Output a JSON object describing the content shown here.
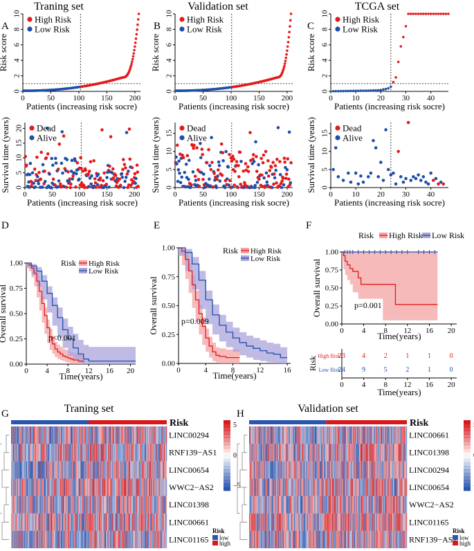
{
  "colors": {
    "high": "#e31a1c",
    "low": "#1f4fa8",
    "high_band": "#f4a3a3",
    "low_band": "#a9a4dc",
    "heat_high": "#d7191c",
    "heat_low": "#2b56b0"
  },
  "column_titles": {
    "training": "Traning set",
    "validation": "Validation set",
    "tcga": "TCGA set"
  },
  "panel_letters": [
    "A",
    "B",
    "C",
    "D",
    "E",
    "F",
    "G",
    "H"
  ],
  "chart_data": [
    {
      "id": "A_top",
      "type": "scatter",
      "title": "Traning set",
      "xlabel": "Patients (increasing risk socre)",
      "ylabel": "Risk score",
      "xlim": [
        0,
        210
      ],
      "ylim": [
        0,
        10
      ],
      "xticks": [
        0,
        50,
        100,
        150,
        200
      ],
      "yticks": [
        0,
        2,
        4,
        6,
        8,
        10
      ],
      "n": 207,
      "cutoff_index": 103,
      "cutoff_value": 1.0,
      "min": 0.08,
      "max": 10,
      "curve_power": 2.2,
      "tail_start": 0.86,
      "legend": [
        "High Risk",
        "Low Risk"
      ]
    },
    {
      "id": "A_bottom",
      "type": "scatter",
      "xlabel": "Patients (increasing risk socre)",
      "ylabel": "Survival time (years)",
      "xlim": [
        0,
        210
      ],
      "ylim": [
        0,
        22
      ],
      "xticks": [
        0,
        50,
        100,
        150,
        200
      ],
      "yticks": [
        0,
        5,
        10,
        15,
        20
      ],
      "n": 207,
      "cutoff_index": 103,
      "seed": 7,
      "legend": [
        "Dead",
        "Alive"
      ]
    },
    {
      "id": "B_top",
      "type": "scatter",
      "title": "Validation set",
      "xlabel": "Patients (increasing risk socre)",
      "ylabel": "Risk score",
      "xlim": [
        0,
        210
      ],
      "ylim": [
        0,
        10
      ],
      "xticks": [
        0,
        50,
        100,
        150,
        200
      ],
      "yticks": [
        0,
        2,
        4,
        6,
        8,
        10
      ],
      "n": 207,
      "cutoff_index": 101,
      "cutoff_value": 1.0,
      "min": 0.08,
      "max": 10,
      "curve_power": 2.2,
      "tail_start": 0.88,
      "legend": [
        "High Risk",
        "Low Risk"
      ]
    },
    {
      "id": "B_bottom",
      "type": "scatter",
      "xlabel": "Patients (increasing risk socre)",
      "ylabel": "Survival time (years)",
      "xlim": [
        0,
        210
      ],
      "ylim": [
        0,
        18
      ],
      "xticks": [
        0,
        50,
        100,
        150,
        200
      ],
      "yticks": [
        0,
        5,
        10,
        15
      ],
      "n": 207,
      "cutoff_index": 101,
      "seed": 13,
      "legend": [
        "Dead",
        "Alive"
      ]
    },
    {
      "id": "C_top",
      "type": "scatter",
      "title": "TCGA set",
      "xlabel": "Patients (increasing risk socre)",
      "ylabel": "Risk score",
      "xlim": [
        0,
        47
      ],
      "ylim": [
        0,
        10
      ],
      "xticks": [
        0,
        10,
        20,
        30,
        40
      ],
      "yticks": [
        0,
        2,
        4,
        6,
        8,
        10
      ],
      "cutoff_index": 24,
      "cutoff_value": 1.0,
      "values": [
        0.02,
        0.03,
        0.03,
        0.04,
        0.04,
        0.05,
        0.05,
        0.06,
        0.06,
        0.07,
        0.07,
        0.08,
        0.08,
        0.09,
        0.1,
        0.11,
        0.12,
        0.13,
        0.14,
        0.16,
        0.25,
        0.3,
        0.4,
        0.6,
        1.2,
        1.8,
        3.8,
        5.8,
        7.0,
        8.4,
        10,
        10,
        10,
        10,
        10,
        10,
        10,
        10,
        10,
        10,
        10,
        10,
        10,
        10,
        10,
        10,
        10
      ],
      "legend": [
        "High Risk",
        "Low Risk"
      ]
    },
    {
      "id": "C_bottom",
      "type": "scatter",
      "xlabel": "Patients (increasing risk socre)",
      "ylabel": "Survival time (years)",
      "xlim": [
        0,
        47
      ],
      "ylim": [
        0,
        18
      ],
      "xticks": [
        0,
        10,
        20,
        30,
        40
      ],
      "yticks": [
        0,
        5,
        10,
        15
      ],
      "cutoff_index": 24,
      "points": [
        [
          1,
          5,
          0
        ],
        [
          2,
          11,
          0
        ],
        [
          3,
          3,
          0
        ],
        [
          5,
          2,
          0
        ],
        [
          7,
          4,
          0
        ],
        [
          8,
          1.5,
          0
        ],
        [
          10,
          4,
          0
        ],
        [
          11,
          1,
          0
        ],
        [
          12,
          3.2,
          0
        ],
        [
          13,
          1.5,
          0
        ],
        [
          15,
          3,
          0
        ],
        [
          16,
          4,
          0
        ],
        [
          17,
          13,
          0
        ],
        [
          18,
          11,
          0
        ],
        [
          19,
          3,
          0
        ],
        [
          20,
          7,
          0
        ],
        [
          21,
          2,
          0
        ],
        [
          22,
          16,
          0
        ],
        [
          23,
          5,
          0
        ],
        [
          24,
          3.5,
          0
        ],
        [
          25,
          4,
          0
        ],
        [
          26,
          1,
          0
        ],
        [
          27,
          10,
          1
        ],
        [
          28,
          3,
          0
        ],
        [
          29,
          1.5,
          0
        ],
        [
          30,
          2.5,
          0
        ],
        [
          31,
          18,
          1
        ],
        [
          32,
          2,
          0
        ],
        [
          33,
          3,
          0
        ],
        [
          34,
          2.5,
          0
        ],
        [
          35,
          3.5,
          0
        ],
        [
          36,
          2,
          0
        ],
        [
          37,
          3,
          0
        ],
        [
          38,
          1.5,
          0
        ],
        [
          39,
          1,
          0
        ],
        [
          40,
          4,
          0
        ],
        [
          41,
          2,
          1
        ],
        [
          42,
          2.5,
          0
        ],
        [
          43,
          1,
          1
        ],
        [
          44,
          1.5,
          0
        ],
        [
          45,
          1,
          1
        ]
      ],
      "legend": [
        "Dead",
        "Alive"
      ]
    },
    {
      "id": "D",
      "type": "line",
      "xlabel": "Time(years)",
      "ylabel": "Overall survival",
      "xlim": [
        0,
        21
      ],
      "ylim": [
        0,
        1
      ],
      "xticks": [
        0,
        4,
        8,
        12,
        16,
        20
      ],
      "yticks": [
        0.0,
        0.25,
        0.5,
        0.75,
        1.0
      ],
      "legend_title": "Risk",
      "pvalue": "p<0.001",
      "series": [
        {
          "name": "High Risk",
          "x": [
            0,
            0.5,
            1,
            1.5,
            2,
            2.5,
            3,
            3.5,
            4,
            4.5,
            5,
            5.5,
            6,
            6.5,
            7,
            7.5,
            8,
            8.5,
            9,
            10,
            11
          ],
          "y": [
            1.0,
            0.98,
            0.95,
            0.9,
            0.82,
            0.72,
            0.6,
            0.48,
            0.36,
            0.27,
            0.2,
            0.15,
            0.12,
            0.1,
            0.08,
            0.07,
            0.06,
            0.05,
            0.04,
            0.03,
            0.02
          ],
          "lo": [
            1.0,
            0.96,
            0.92,
            0.86,
            0.77,
            0.66,
            0.53,
            0.41,
            0.3,
            0.21,
            0.14,
            0.1,
            0.07,
            0.05,
            0.04,
            0.03,
            0.02,
            0.015,
            0.01,
            0.0,
            0.0
          ],
          "hi": [
            1.0,
            0.99,
            0.98,
            0.94,
            0.88,
            0.79,
            0.67,
            0.56,
            0.44,
            0.35,
            0.28,
            0.22,
            0.19,
            0.17,
            0.15,
            0.14,
            0.13,
            0.12,
            0.11,
            0.1,
            0.09
          ]
        },
        {
          "name": "Low Risk",
          "x": [
            0,
            1,
            2,
            3,
            4,
            5,
            6,
            7,
            8,
            9,
            10,
            11,
            12,
            21
          ],
          "y": [
            1.0,
            0.97,
            0.92,
            0.82,
            0.7,
            0.58,
            0.46,
            0.34,
            0.25,
            0.16,
            0.1,
            0.05,
            0.03,
            0.03
          ],
          "lo": [
            1.0,
            0.95,
            0.88,
            0.77,
            0.64,
            0.51,
            0.38,
            0.26,
            0.16,
            0.08,
            0.04,
            0.01,
            0.0,
            0.0
          ],
          "hi": [
            1.0,
            0.99,
            0.96,
            0.88,
            0.77,
            0.66,
            0.56,
            0.45,
            0.37,
            0.3,
            0.24,
            0.19,
            0.17,
            0.17
          ]
        }
      ]
    },
    {
      "id": "E",
      "type": "line",
      "xlabel": "Time(years)",
      "ylabel": "Overall survival",
      "xlim": [
        0,
        16.5
      ],
      "ylim": [
        0,
        1
      ],
      "xticks": [
        0,
        4,
        8,
        12,
        16
      ],
      "yticks": [
        0.0,
        0.25,
        0.5,
        0.75,
        1.0
      ],
      "legend_title": "Risk",
      "pvalue": "p=0.009",
      "series": [
        {
          "name": "High Risk",
          "x": [
            0,
            0.5,
            1,
            1.5,
            2,
            2.5,
            3,
            3.5,
            4,
            4.5,
            5,
            5.5,
            6,
            7,
            8,
            9
          ],
          "y": [
            1.0,
            0.97,
            0.9,
            0.8,
            0.68,
            0.55,
            0.43,
            0.32,
            0.22,
            0.15,
            0.1,
            0.07,
            0.06,
            0.05,
            0.05,
            0.05
          ],
          "lo": [
            1.0,
            0.94,
            0.85,
            0.73,
            0.61,
            0.48,
            0.36,
            0.25,
            0.16,
            0.1,
            0.05,
            0.02,
            0.01,
            0.0,
            0.0,
            0.0
          ],
          "hi": [
            1.0,
            0.99,
            0.95,
            0.87,
            0.76,
            0.63,
            0.51,
            0.4,
            0.3,
            0.23,
            0.18,
            0.14,
            0.13,
            0.12,
            0.12,
            0.12
          ]
        },
        {
          "name": "Low Risk",
          "x": [
            0,
            1,
            2,
            3,
            4,
            5,
            6,
            7,
            8,
            9,
            10,
            11,
            12,
            13,
            14,
            15,
            16
          ],
          "y": [
            1.0,
            0.96,
            0.86,
            0.72,
            0.55,
            0.42,
            0.33,
            0.27,
            0.22,
            0.18,
            0.15,
            0.13,
            0.11,
            0.09,
            0.08,
            0.05,
            0.05
          ],
          "lo": [
            1.0,
            0.93,
            0.8,
            0.64,
            0.47,
            0.34,
            0.25,
            0.19,
            0.14,
            0.1,
            0.07,
            0.05,
            0.03,
            0.02,
            0.01,
            0.0,
            0.0
          ],
          "hi": [
            1.0,
            0.99,
            0.92,
            0.8,
            0.63,
            0.51,
            0.42,
            0.36,
            0.31,
            0.27,
            0.24,
            0.22,
            0.2,
            0.18,
            0.17,
            0.14,
            0.14
          ]
        }
      ]
    },
    {
      "id": "F",
      "type": "line",
      "xlabel": "Time(years)",
      "ylabel": "Overall survival",
      "xlim": [
        0,
        21
      ],
      "ylim": [
        0,
        1
      ],
      "xticks": [
        0,
        4,
        8,
        12,
        16,
        20
      ],
      "yticks": [
        0.0,
        0.25,
        0.5,
        0.75,
        1.0
      ],
      "legend_title": "Risk",
      "pvalue": "p=0.001",
      "series": [
        {
          "name": "High Risk",
          "x": [
            0,
            0.3,
            0.6,
            1.0,
            1.5,
            2.0,
            3.0,
            3.5,
            7.5,
            9.8,
            17.5
          ],
          "y": [
            1.0,
            0.95,
            0.87,
            0.82,
            0.77,
            0.73,
            0.64,
            0.55,
            0.55,
            0.27,
            0.27
          ],
          "lo": [
            1.0,
            0.87,
            0.76,
            0.68,
            0.61,
            0.55,
            0.44,
            0.35,
            0.35,
            0.05,
            0.05
          ],
          "hi": [
            1.0,
            1.0,
            1.0,
            1.0,
            1.0,
            1.0,
            1.0,
            1.0,
            1.0,
            1.0,
            1.0
          ]
        },
        {
          "name": "Low Risk",
          "x": [
            0,
            17.5
          ],
          "y": [
            1.0,
            1.0
          ],
          "lo": [
            1.0,
            1.0
          ],
          "hi": [
            1.0,
            1.0
          ],
          "censor": [
            0.5,
            1,
            1.5,
            2,
            3,
            4,
            5,
            6,
            7,
            8,
            9,
            10,
            11,
            12,
            14,
            15,
            16,
            17
          ]
        }
      ],
      "risk_table": {
        "title": "Risk",
        "times": [
          0,
          4,
          8,
          12,
          16,
          20
        ],
        "rows": [
          {
            "name": "High Risk",
            "counts": [
              23,
              4,
              2,
              1,
              1,
              0
            ]
          },
          {
            "name": "Low Risk",
            "counts": [
              24,
              9,
              5,
              2,
              1,
              0
            ]
          }
        ]
      }
    },
    {
      "id": "G",
      "type": "heatmap",
      "title": "Traning set",
      "rows": [
        "LINC00294",
        "RNF139−AS1",
        "LINC00654",
        "WWC2−AS2",
        "LINC01398",
        "LINC00661",
        "LINC01165"
      ],
      "ncols": 207,
      "split": 103,
      "annotation": "Risk",
      "scale_ticks": [
        "5",
        "0",
        "−5"
      ],
      "legend_title": "Risk",
      "legend_items": [
        "low",
        "high"
      ],
      "seed": 21
    },
    {
      "id": "H",
      "type": "heatmap",
      "title": "Validation set",
      "rows": [
        "LINC00661",
        "LINC01398",
        "LINC00294",
        "LINC00654",
        "WWC2−AS2",
        "LINC01165",
        "RNF139−AS1"
      ],
      "ncols": 207,
      "split": 101,
      "annotation": "Risk",
      "scale_ticks": [
        "5",
        "0",
        "−5"
      ],
      "legend_title": "Risk",
      "legend_items": [
        "low",
        "high"
      ],
      "seed": 33
    }
  ]
}
